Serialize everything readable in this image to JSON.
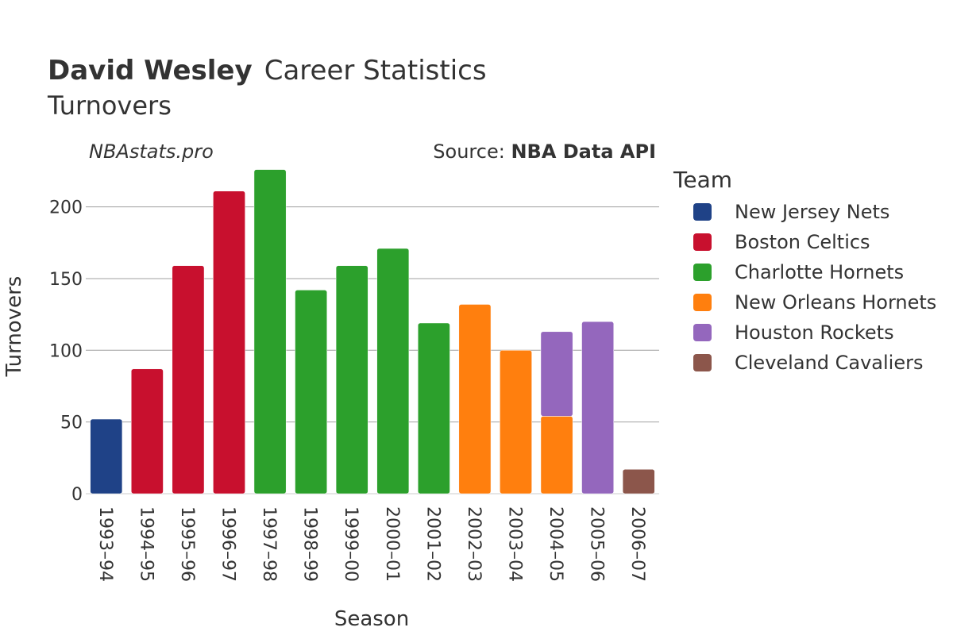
{
  "chart_data": {
    "type": "bar",
    "stacked": true,
    "title_bold": "David Wesley",
    "title_rest": "Career Statistics",
    "subtitle": "Turnovers",
    "watermark": "NBAstats.pro",
    "source_prefix": "Source: ",
    "source_name": "NBA Data API",
    "xlabel": "Season",
    "ylabel": "Turnovers",
    "ylim": [
      0,
      228
    ],
    "yticks": [
      0,
      50,
      100,
      150,
      200
    ],
    "grid": true,
    "legend_title": "Team",
    "legend_position": "right",
    "categories": [
      "1993–94",
      "1994–95",
      "1995–96",
      "1996–97",
      "1997–98",
      "1998–99",
      "1999–00",
      "2000–01",
      "2001–02",
      "2002–03",
      "2003–04",
      "2004–05",
      "2005–06",
      "2006–07"
    ],
    "series": [
      {
        "name": "New Jersey Nets",
        "color": "#1f4287",
        "values": [
          52,
          0,
          0,
          0,
          0,
          0,
          0,
          0,
          0,
          0,
          0,
          0,
          0,
          0
        ]
      },
      {
        "name": "Boston Celtics",
        "color": "#c8102e",
        "values": [
          0,
          87,
          159,
          211,
          0,
          0,
          0,
          0,
          0,
          0,
          0,
          0,
          0,
          0
        ]
      },
      {
        "name": "Charlotte Hornets",
        "color": "#2ca02c",
        "values": [
          0,
          0,
          0,
          0,
          226,
          142,
          159,
          171,
          119,
          0,
          0,
          0,
          0,
          0
        ]
      },
      {
        "name": "New Orleans Hornets",
        "color": "#ff7f0e",
        "values": [
          0,
          0,
          0,
          0,
          0,
          0,
          0,
          0,
          0,
          132,
          100,
          54,
          0,
          0
        ]
      },
      {
        "name": "Houston Rockets",
        "color": "#9467bd",
        "values": [
          0,
          0,
          0,
          0,
          0,
          0,
          0,
          0,
          0,
          0,
          0,
          59,
          120,
          0
        ]
      },
      {
        "name": "Cleveland Cavaliers",
        "color": "#8c564b",
        "values": [
          0,
          0,
          0,
          0,
          0,
          0,
          0,
          0,
          0,
          0,
          0,
          0,
          0,
          17
        ]
      }
    ]
  }
}
